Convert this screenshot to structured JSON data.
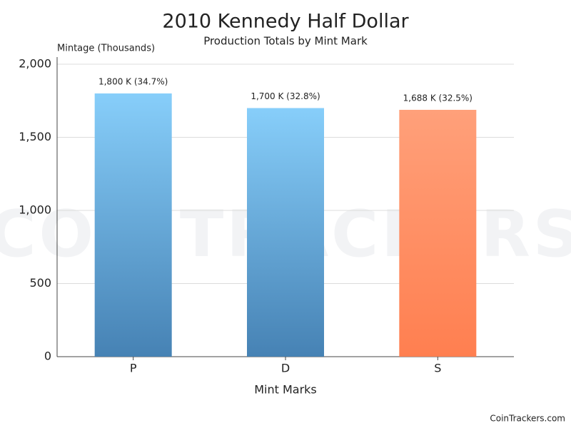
{
  "chart_data": {
    "type": "bar",
    "title": "2010 Kennedy Half Dollar",
    "subtitle": "Production Totals by Mint Mark",
    "y_label": "Mintage (Thousands)",
    "x_label": "Mint Marks",
    "watermark": "COINTRACKERS",
    "credit": "CoinTrackers.com",
    "categories": [
      "P",
      "D",
      "S"
    ],
    "values": [
      1800,
      1700,
      1688
    ],
    "value_labels": [
      "1,800 K (34.7%)",
      "1,700 K (32.8%)",
      "1,688 K (32.5%)"
    ],
    "colors": [
      [
        "#87cefa",
        "#4682b4"
      ],
      [
        "#87cefa",
        "#4682b4"
      ],
      [
        "#ffa07a",
        "#ff7f50"
      ]
    ],
    "ylim": [
      0,
      2000
    ],
    "yticks": [
      0,
      500,
      {
        "value": 1000,
        "label": "1,000"
      },
      {
        "value": 1500,
        "label": "1,500"
      },
      {
        "value": 2000,
        "label": "2,000"
      }
    ],
    "grid": true
  }
}
